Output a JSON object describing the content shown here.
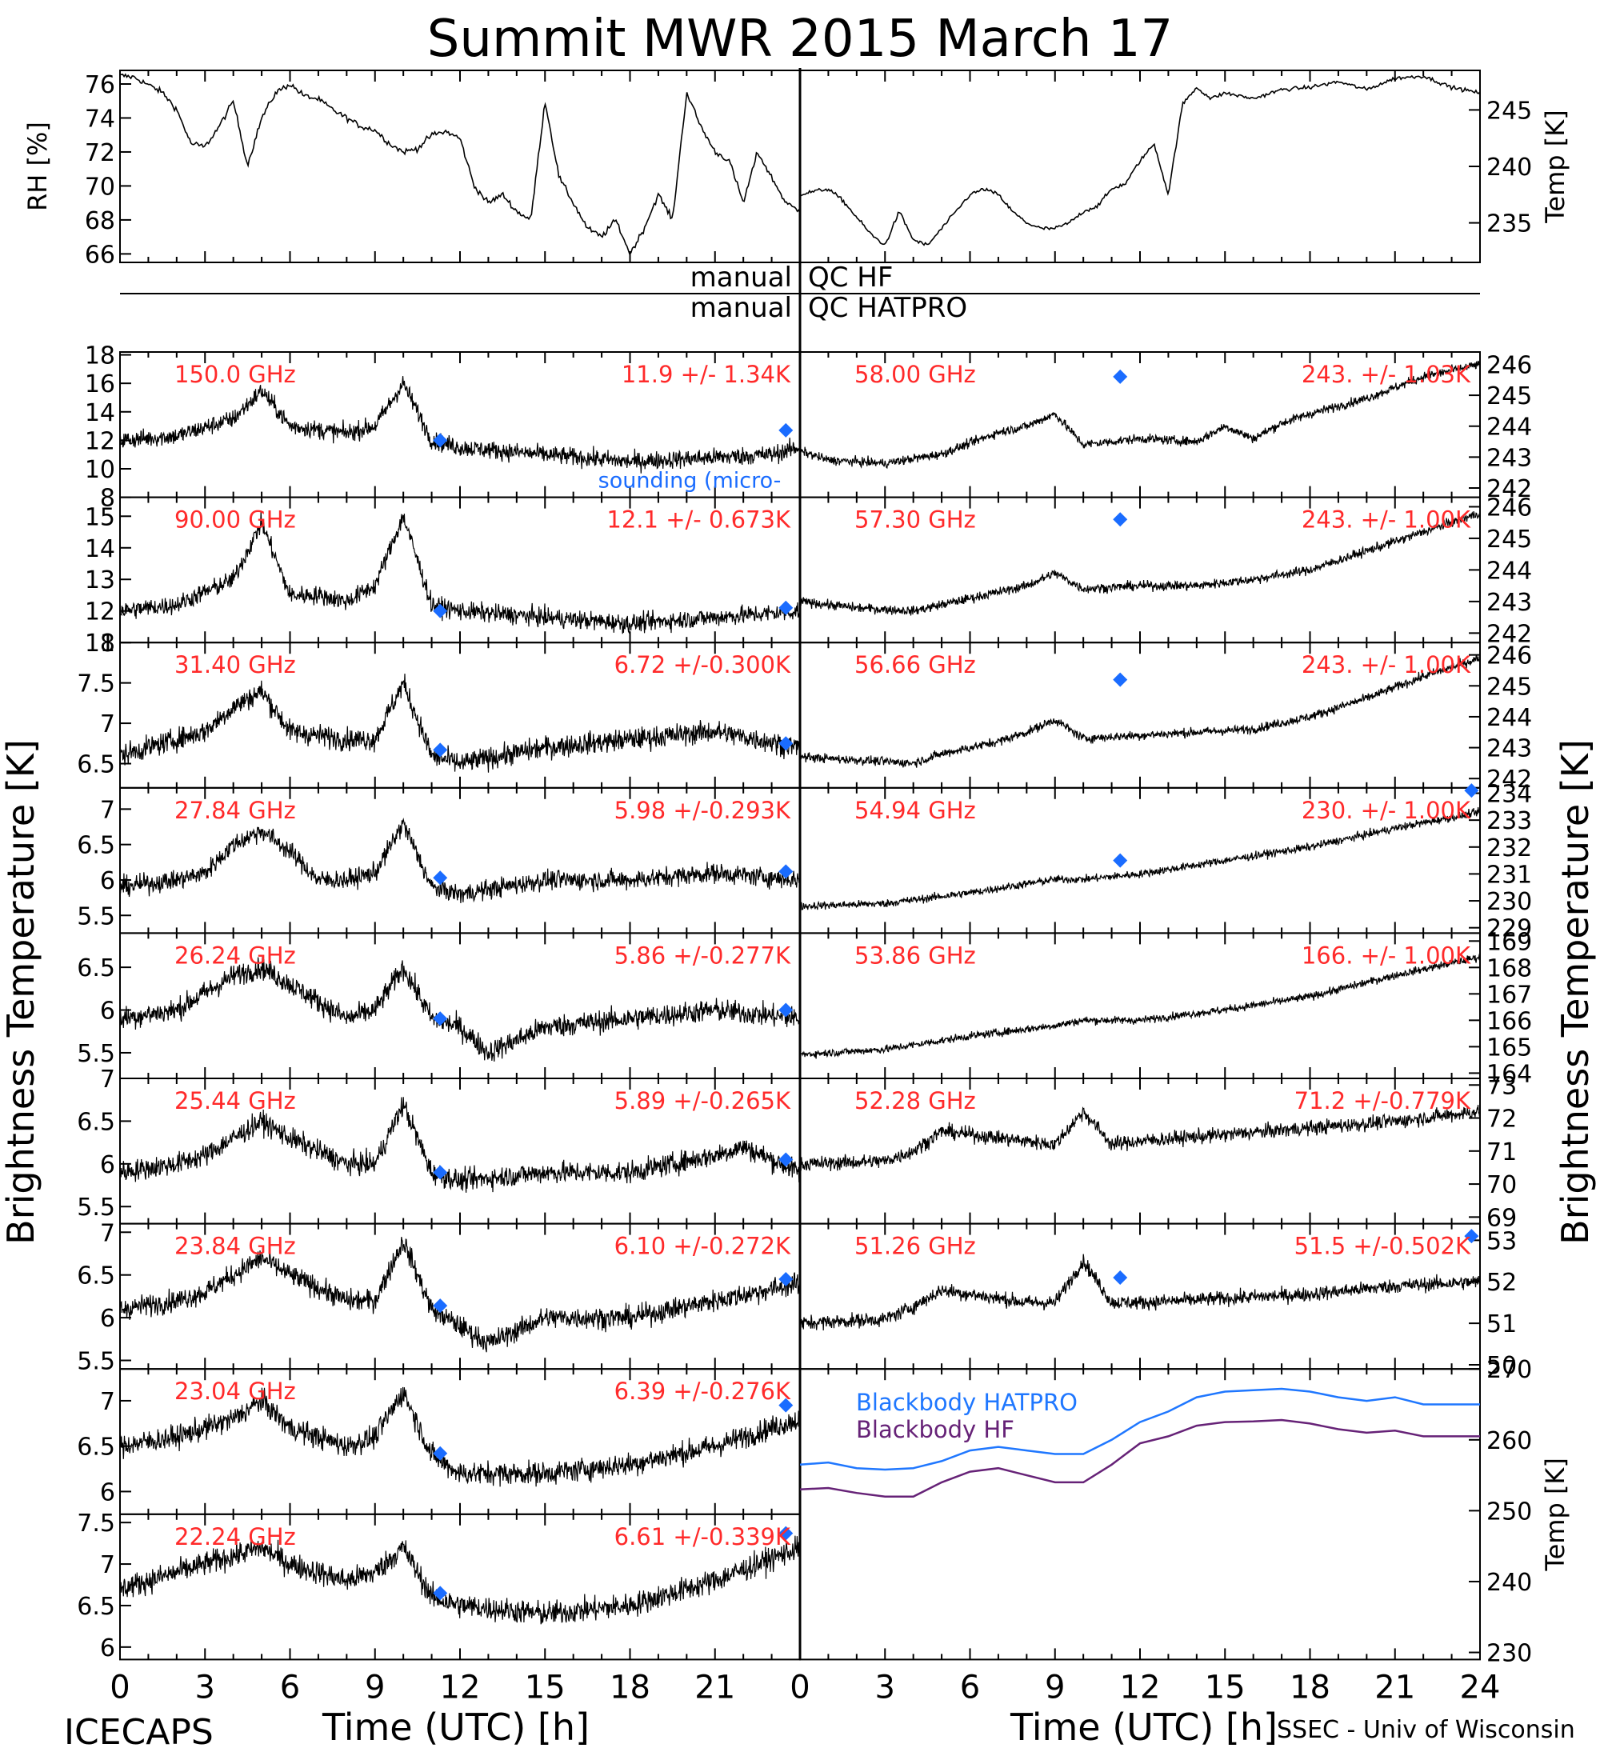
{
  "title": "Summit MWR 2015 March 17",
  "footer": {
    "left": "ICECAPS",
    "right": "SSEC - Univ of Wisconsin"
  },
  "qc": {
    "manual_label_1": "manual",
    "qc_label_1": "QC HF",
    "manual_label_2": "manual",
    "qc_label_2": "QC HATPRO"
  },
  "axes": {
    "left_ylabel": "Brightness Temperature [K]",
    "right_ylabel": "Brightness Temperature [K]",
    "xlabel": "Time (UTC) [h]",
    "xticks": [
      "0",
      "3",
      "6",
      "9",
      "12",
      "15",
      "18",
      "21",
      "24"
    ],
    "xticks_left": [
      "0",
      "3",
      "6",
      "9",
      "12",
      "15",
      "18",
      "21"
    ],
    "legend_label": "sounding (micro-"
  },
  "chart_data": [
    {
      "type": "line",
      "panel": "met-left",
      "ylabel": "RH [%]",
      "ylim": [
        65.5,
        76.8
      ],
      "yticks": [
        66,
        68,
        70,
        72,
        74,
        76
      ],
      "x": [
        0,
        0.5,
        1.5,
        2,
        2.5,
        3,
        3.5,
        4,
        4.5,
        5,
        5.5,
        6,
        6.5,
        7,
        7.5,
        8,
        8.5,
        9,
        9.5,
        10,
        10.5,
        11,
        11.5,
        12,
        12.5,
        13,
        13.5,
        14,
        14.5,
        15,
        15.5,
        16,
        16.5,
        17,
        17.5,
        18,
        18.5,
        19,
        19.5,
        20,
        20.5,
        21,
        21.5,
        22,
        22.5,
        23,
        23.5,
        24
      ],
      "y": [
        76.5,
        76.4,
        75.5,
        74.5,
        72.5,
        72.3,
        73.5,
        75.0,
        71.2,
        74.0,
        75.5,
        76.0,
        75.3,
        75.1,
        74.5,
        74.0,
        73.5,
        73.3,
        72.5,
        72.0,
        72.2,
        73.0,
        73.2,
        72.8,
        70.0,
        69.0,
        69.5,
        68.5,
        68.0,
        75.0,
        70.5,
        69.0,
        67.5,
        67.0,
        68.0,
        66.0,
        67.5,
        69.5,
        68.0,
        75.5,
        73.5,
        72.0,
        71.5,
        69.0,
        72.0,
        70.5,
        69.0,
        68.5
      ]
    },
    {
      "type": "line",
      "panel": "met-right",
      "ylabel": "Temp [K]",
      "ylim": [
        231.5,
        248.5
      ],
      "yticks": [
        235,
        240,
        245
      ],
      "x": [
        0,
        0.5,
        1,
        1.5,
        2,
        2.5,
        3,
        3.5,
        4,
        4.5,
        5,
        5.5,
        6,
        6.5,
        7,
        7.5,
        8,
        8.5,
        9,
        9.5,
        10,
        10.5,
        11,
        11.5,
        12,
        12.5,
        13,
        13.5,
        14,
        14.5,
        15,
        16,
        17,
        18,
        19,
        20,
        21,
        22,
        23,
        24
      ],
      "y": [
        237.5,
        237.8,
        238.0,
        237.0,
        235.5,
        234.0,
        233.0,
        236.0,
        233.5,
        233.0,
        234.5,
        236.0,
        237.5,
        238.0,
        237.5,
        236.0,
        235.0,
        234.5,
        234.5,
        235.0,
        236.0,
        236.5,
        238.0,
        238.5,
        240.5,
        242.0,
        237.5,
        245.5,
        247.0,
        246.0,
        246.5,
        246.0,
        246.8,
        247.0,
        247.5,
        246.8,
        247.8,
        248.0,
        247.0,
        246.5
      ]
    },
    {
      "type": "line",
      "panel": "left-1",
      "label": "150.0 GHz",
      "stats": "11.9 +/- 1.34K",
      "ylim": [
        8,
        18.2
      ],
      "yticks": [
        8,
        10,
        12,
        14,
        16,
        18
      ],
      "noise": 1.3,
      "x": [
        0,
        2,
        4,
        5,
        6,
        8,
        9,
        10,
        11,
        12,
        15,
        18,
        21,
        23,
        24
      ],
      "y": [
        12,
        12.3,
        13.5,
        15.5,
        13,
        12.5,
        13,
        16,
        12,
        11.5,
        11,
        10.5,
        10.8,
        11,
        11.5
      ],
      "sounding_x": [
        11.3,
        23.5
      ],
      "sounding_y": [
        12.0,
        12.7
      ]
    },
    {
      "type": "line",
      "panel": "left-2",
      "label": "90.00 GHz",
      "stats": "12.1 +/- 0.673K",
      "ylim": [
        11,
        15.6
      ],
      "yticks": [
        11,
        12,
        13,
        14,
        15
      ],
      "noise": 0.6,
      "x": [
        0,
        2,
        3,
        4,
        5,
        6,
        7,
        8,
        9,
        10,
        11,
        12,
        15,
        18,
        21,
        24
      ],
      "y": [
        12,
        12.2,
        12.6,
        13,
        14.8,
        12.5,
        12.5,
        12.3,
        12.8,
        15,
        12.2,
        12,
        11.8,
        11.6,
        11.8,
        12
      ],
      "sounding_x": [
        11.3,
        23.5
      ],
      "sounding_y": [
        12.0,
        12.1
      ]
    },
    {
      "type": "line",
      "panel": "left-3",
      "label": "31.40 GHz",
      "stats": "6.72 +/-0.300K",
      "ylim": [
        6.2,
        8.0
      ],
      "yticks": [
        6.5,
        7.0,
        7.5,
        8.0
      ],
      "noise": 0.28,
      "x": [
        0,
        2,
        3,
        4,
        5,
        6,
        8,
        9,
        10,
        11,
        12,
        15,
        18,
        21,
        24
      ],
      "y": [
        6.6,
        6.8,
        6.9,
        7.2,
        7.4,
        6.9,
        6.8,
        6.8,
        7.5,
        6.6,
        6.5,
        6.7,
        6.8,
        6.9,
        6.7
      ],
      "sounding_x": [
        11.3,
        23.5
      ],
      "sounding_y": [
        6.67,
        6.75
      ]
    },
    {
      "type": "line",
      "panel": "left-4",
      "label": "27.84 GHz",
      "stats": "5.98 +/-0.293K",
      "ylim": [
        5.25,
        7.3
      ],
      "yticks": [
        5.5,
        6.0,
        6.5,
        7.0
      ],
      "noise": 0.28,
      "x": [
        0,
        2,
        3,
        4,
        5,
        6,
        7,
        8,
        9,
        10,
        11,
        12,
        15,
        18,
        21,
        24
      ],
      "y": [
        5.9,
        6.0,
        6.1,
        6.5,
        6.7,
        6.4,
        6.0,
        6.0,
        6.1,
        6.8,
        5.9,
        5.8,
        6.0,
        6.0,
        6.1,
        6.0
      ],
      "sounding_x": [
        11.3,
        23.5
      ],
      "sounding_y": [
        6.03,
        6.12
      ]
    },
    {
      "type": "line",
      "panel": "left-5",
      "label": "26.24 GHz",
      "stats": "5.86 +/-0.277K",
      "ylim": [
        5.2,
        6.9
      ],
      "yticks": [
        5.5,
        6.0,
        6.5
      ],
      "noise": 0.27,
      "x": [
        0,
        2,
        3,
        4,
        5,
        6,
        8,
        9,
        10,
        11,
        12,
        13,
        15,
        18,
        21,
        24
      ],
      "y": [
        5.9,
        6.0,
        6.2,
        6.4,
        6.5,
        6.3,
        5.9,
        6.0,
        6.5,
        5.9,
        5.8,
        5.5,
        5.8,
        5.9,
        6.0,
        5.9
      ],
      "sounding_x": [
        11.3,
        23.5
      ],
      "sounding_y": [
        5.9,
        6.0
      ]
    },
    {
      "type": "line",
      "panel": "left-6",
      "label": "25.44 GHz",
      "stats": "5.89 +/-0.265K",
      "ylim": [
        5.3,
        7.0
      ],
      "yticks": [
        5.5,
        6.0,
        6.5,
        7.0
      ],
      "noise": 0.26,
      "x": [
        0,
        2,
        3,
        4,
        5,
        6,
        8,
        9,
        10,
        11,
        12,
        15,
        18,
        21,
        22,
        24
      ],
      "y": [
        5.9,
        6.0,
        6.1,
        6.3,
        6.5,
        6.3,
        6.0,
        6.0,
        6.7,
        5.9,
        5.8,
        5.9,
        5.9,
        6.1,
        6.2,
        5.9
      ],
      "sounding_x": [
        11.3,
        23.5
      ],
      "sounding_y": [
        5.9,
        6.05
      ]
    },
    {
      "type": "line",
      "panel": "left-7",
      "label": "23.84 GHz",
      "stats": "6.10 +/-0.272K",
      "ylim": [
        5.4,
        7.1
      ],
      "yticks": [
        5.5,
        6.0,
        6.5,
        7.0
      ],
      "noise": 0.26,
      "x": [
        0,
        2,
        3,
        4,
        5,
        6,
        8,
        9,
        10,
        11,
        12,
        13,
        15,
        18,
        21,
        24
      ],
      "y": [
        6.1,
        6.2,
        6.3,
        6.5,
        6.7,
        6.5,
        6.2,
        6.2,
        6.9,
        6.1,
        5.9,
        5.7,
        6.0,
        6.0,
        6.2,
        6.4
      ],
      "sounding_x": [
        11.3,
        23.5
      ],
      "sounding_y": [
        6.14,
        6.45
      ]
    },
    {
      "type": "line",
      "panel": "left-8",
      "label": "23.04 GHz",
      "stats": "6.39 +/-0.276K",
      "ylim": [
        5.75,
        7.35
      ],
      "yticks": [
        6.0,
        6.5,
        7.0
      ],
      "noise": 0.26,
      "x": [
        0,
        2,
        3,
        4,
        5,
        6,
        8,
        9,
        10,
        11,
        12,
        15,
        18,
        21,
        24
      ],
      "y": [
        6.5,
        6.6,
        6.7,
        6.8,
        7.0,
        6.7,
        6.5,
        6.6,
        7.1,
        6.4,
        6.2,
        6.2,
        6.3,
        6.5,
        6.8
      ],
      "sounding_x": [
        11.3,
        23.5
      ],
      "sounding_y": [
        6.42,
        6.95
      ]
    },
    {
      "type": "line",
      "panel": "left-9",
      "label": "22.24 GHz",
      "stats": "6.61 +/-0.339K",
      "ylim": [
        5.85,
        7.6
      ],
      "yticks": [
        6.0,
        6.5,
        7.0,
        7.5
      ],
      "noise": 0.3,
      "x": [
        0,
        2,
        3,
        4,
        5,
        6,
        8,
        9,
        10,
        11,
        12,
        15,
        18,
        21,
        24
      ],
      "y": [
        6.7,
        6.9,
        7.0,
        7.1,
        7.2,
        7.0,
        6.8,
        6.9,
        7.2,
        6.6,
        6.5,
        6.4,
        6.5,
        6.8,
        7.2
      ],
      "sounding_x": [
        11.3,
        23.5
      ],
      "sounding_y": [
        6.65,
        7.37
      ]
    },
    {
      "type": "line",
      "panel": "right-1",
      "label": "58.00 GHz",
      "stats": "243. +/- 1.03K",
      "ylim": [
        241.7,
        246.4
      ],
      "yticks": [
        242,
        243,
        244,
        245,
        246
      ],
      "noise": 0.3,
      "x": [
        0,
        1,
        3,
        5,
        7,
        8,
        9,
        10,
        12,
        14,
        15,
        16,
        17,
        18,
        20,
        22,
        24
      ],
      "y": [
        243.2,
        242.9,
        242.8,
        243.1,
        243.8,
        244,
        244.4,
        243.4,
        243.6,
        243.5,
        244,
        243.6,
        244.1,
        244.4,
        244.9,
        245.6,
        246
      ],
      "sounding_x": [
        11.3
      ],
      "sounding_y": [
        245.6
      ]
    },
    {
      "type": "line",
      "panel": "right-2",
      "label": "57.30 GHz",
      "stats": "243. +/- 1.00K",
      "ylim": [
        241.7,
        246.3
      ],
      "yticks": [
        242,
        243,
        244,
        245,
        246
      ],
      "noise": 0.3,
      "x": [
        0,
        2,
        4,
        5,
        7,
        8,
        9,
        10,
        12,
        14,
        16,
        18,
        20,
        22,
        24
      ],
      "y": [
        243,
        242.8,
        242.7,
        242.9,
        243.3,
        243.5,
        243.9,
        243.4,
        243.5,
        243.5,
        243.7,
        244,
        244.6,
        245.2,
        245.8
      ],
      "sounding_x": [
        11.3
      ],
      "sounding_y": [
        245.6
      ]
    },
    {
      "type": "line",
      "panel": "right-3",
      "label": "56.66 GHz",
      "stats": "243. +/- 1.00K",
      "ylim": [
        241.7,
        246.4
      ],
      "yticks": [
        242,
        243,
        244,
        245,
        246
      ],
      "noise": 0.3,
      "x": [
        0,
        2,
        4,
        5,
        7,
        8,
        9,
        10,
        12,
        14,
        16,
        18,
        20,
        22,
        24
      ],
      "y": [
        242.7,
        242.6,
        242.5,
        242.8,
        243.2,
        243.5,
        243.9,
        243.3,
        243.4,
        243.5,
        243.6,
        244,
        244.6,
        245.3,
        245.9
      ],
      "sounding_x": [
        11.3
      ],
      "sounding_y": [
        245.2
      ]
    },
    {
      "type": "line",
      "panel": "right-4",
      "label": "54.94 GHz",
      "stats": "230. +/- 1.00K",
      "ylim": [
        228.8,
        234.2
      ],
      "yticks": [
        229,
        230,
        231,
        232,
        233,
        234
      ],
      "noise": 0.3,
      "x": [
        0,
        3,
        6,
        9,
        10,
        12,
        15,
        18,
        21,
        24
      ],
      "y": [
        229.8,
        229.9,
        230.3,
        230.8,
        230.8,
        231,
        231.5,
        232,
        232.7,
        233.3
      ],
      "sounding_x": [
        11.3,
        23.7
      ],
      "sounding_y": [
        231.5,
        234.1
      ]
    },
    {
      "type": "line",
      "panel": "right-5",
      "label": "53.86 GHz",
      "stats": "166. +/- 1.00K",
      "ylim": [
        163.8,
        169.3
      ],
      "yticks": [
        164,
        165,
        166,
        167,
        168,
        169
      ],
      "noise": 0.3,
      "x": [
        0,
        3,
        6,
        9,
        10,
        12,
        15,
        18,
        21,
        24
      ],
      "y": [
        164.7,
        164.9,
        165.4,
        165.8,
        166,
        166,
        166.4,
        166.9,
        167.7,
        168.4
      ],
      "sounding_x": [],
      "sounding_y": []
    },
    {
      "type": "line",
      "panel": "right-6",
      "label": "52.28 GHz",
      "stats": "71.2 +/-0.779K",
      "ylim": [
        68.8,
        73.2
      ],
      "yticks": [
        69,
        70,
        71,
        72,
        73
      ],
      "noise": 0.45,
      "x": [
        0,
        3,
        4,
        5,
        7,
        8,
        9,
        10,
        11,
        12,
        15,
        18,
        21,
        24
      ],
      "y": [
        70.6,
        70.7,
        71.0,
        71.6,
        71.4,
        71.3,
        71.2,
        72.2,
        71.2,
        71.3,
        71.5,
        71.7,
        71.9,
        72.2
      ],
      "sounding_x": [],
      "sounding_y": []
    },
    {
      "type": "line",
      "panel": "right-7",
      "label": "51.26 GHz",
      "stats": "51.5 +/-0.502K",
      "ylim": [
        49.9,
        53.4
      ],
      "yticks": [
        50,
        51,
        52,
        53
      ],
      "noise": 0.35,
      "x": [
        0,
        3,
        4,
        5,
        7,
        8,
        9,
        10,
        11,
        12,
        15,
        18,
        21,
        24
      ],
      "y": [
        51,
        51.1,
        51.4,
        51.8,
        51.6,
        51.5,
        51.5,
        52.5,
        51.5,
        51.5,
        51.6,
        51.7,
        51.9,
        52
      ],
      "sounding_x": [
        11.3,
        23.7
      ],
      "sounding_y": [
        52.1,
        53.1
      ]
    },
    {
      "type": "line",
      "panel": "right-8",
      "ylabel": "Temp [K]",
      "ylim": [
        229,
        270
      ],
      "yticks": [
        230,
        240,
        250,
        260,
        270
      ],
      "series": [
        {
          "name": "Blackbody HATPRO",
          "color": "#1f77ff",
          "x": [
            0,
            1,
            2,
            3,
            4,
            5,
            6,
            7,
            8,
            9,
            10,
            11,
            12,
            13,
            14,
            15,
            16,
            17,
            18,
            19,
            20,
            21,
            22,
            23,
            24
          ],
          "y": [
            256.5,
            256.8,
            256.0,
            255.8,
            256.0,
            257.0,
            258.5,
            259.0,
            258.5,
            258.0,
            258.0,
            260.0,
            262.5,
            264.0,
            266.0,
            266.8,
            267.0,
            267.2,
            266.8,
            266.0,
            265.5,
            266.0,
            265.0,
            265.0,
            265.0
          ]
        },
        {
          "name": "Blackbody HF",
          "color": "#662277",
          "x": [
            0,
            1,
            2,
            3,
            4,
            5,
            6,
            7,
            8,
            9,
            10,
            11,
            12,
            13,
            14,
            15,
            16,
            17,
            18,
            19,
            20,
            21,
            22,
            23,
            24
          ],
          "y": [
            253.0,
            253.2,
            252.5,
            252.0,
            252.0,
            254.0,
            255.5,
            256.0,
            255.0,
            254.0,
            254.0,
            256.5,
            259.5,
            260.5,
            262.0,
            262.5,
            262.6,
            262.8,
            262.3,
            261.5,
            261.0,
            261.3,
            260.5,
            260.5,
            260.5
          ]
        }
      ]
    }
  ],
  "colors": {
    "label_red": "#ff2a2a",
    "sounding_blue": "#1a6cff",
    "hatpro_blue": "#1f77ff",
    "hf_purple": "#662277"
  }
}
